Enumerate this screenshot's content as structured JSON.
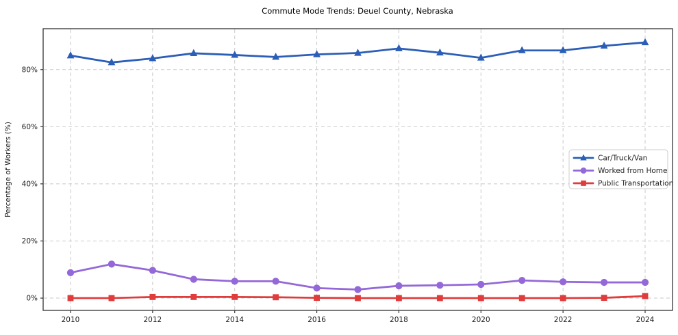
{
  "figure": {
    "title": "Commute Mode Trends: Deuel County, Nebraska"
  },
  "chart_data": {
    "type": "line",
    "title": "Commute Mode Trends: Deuel County, Nebraska",
    "xlabel": "",
    "ylabel": "Percentage of Workers (%)",
    "x": [
      2010,
      2011,
      2012,
      2013,
      2014,
      2015,
      2016,
      2017,
      2018,
      2019,
      2020,
      2021,
      2022,
      2023,
      2024
    ],
    "series": [
      {
        "name": "Car/Truck/Van",
        "color": "#2b5eb7",
        "marker": "triangle",
        "values": [
          84.9,
          82.5,
          83.9,
          85.7,
          85.1,
          84.4,
          85.3,
          85.8,
          87.4,
          85.9,
          84.1,
          86.7,
          86.7,
          88.3,
          89.5
        ]
      },
      {
        "name": "Worked from Home",
        "color": "#9468d8",
        "marker": "circle",
        "values": [
          8.9,
          11.9,
          9.7,
          6.6,
          5.9,
          5.9,
          3.5,
          3.0,
          4.3,
          4.5,
          4.8,
          6.2,
          5.7,
          5.5,
          5.5
        ]
      },
      {
        "name": "Public Transportation",
        "color": "#e03c3c",
        "marker": "square",
        "values": [
          0.0,
          0.0,
          0.4,
          0.4,
          0.4,
          0.3,
          0.1,
          0.0,
          0.0,
          0.0,
          0.0,
          0.0,
          0.0,
          0.1,
          0.7
        ]
      }
    ],
    "ylim": [
      -4.3,
      94.3
    ],
    "yticks": {
      "values": [
        0,
        20,
        40,
        60,
        80
      ],
      "labels": [
        "0%",
        "20%",
        "40%",
        "60%",
        "80%"
      ]
    },
    "xticks": {
      "values": [
        2010,
        2012,
        2014,
        2016,
        2018,
        2020,
        2022,
        2024
      ],
      "labels": [
        "2010",
        "2012",
        "2014",
        "2016",
        "2018",
        "2020",
        "2022",
        "2024"
      ]
    },
    "grid": "dashed",
    "legend": {
      "position": "center right",
      "entries": [
        "Car/Truck/Van",
        "Worked from Home",
        "Public Transportation"
      ]
    },
    "colors": {
      "background": "#ffffff",
      "gridline": "#c9c9c9",
      "spine": "#333333",
      "axis_text": "#1a1a1a",
      "legend_border": "#cccccc",
      "legend_fill": "#ffffff"
    }
  }
}
